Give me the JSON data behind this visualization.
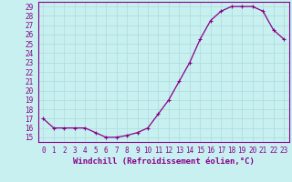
{
  "x": [
    0,
    1,
    2,
    3,
    4,
    5,
    6,
    7,
    8,
    9,
    10,
    11,
    12,
    13,
    14,
    15,
    16,
    17,
    18,
    19,
    20,
    21,
    22,
    23
  ],
  "y": [
    17,
    16,
    16,
    16,
    16,
    15.5,
    15,
    15,
    15.2,
    15.5,
    16,
    17.5,
    19,
    21,
    23,
    25.5,
    27.5,
    28.5,
    29,
    29,
    29,
    28.5,
    26.5,
    25.5
  ],
  "line_color": "#880088",
  "marker": "P",
  "marker_size": 2.5,
  "bg_color": "#c8f0f0",
  "xlabel": "Windchill (Refroidissement éolien,°C)",
  "ylim": [
    14.5,
    29.5
  ],
  "yticks": [
    15,
    16,
    17,
    18,
    19,
    20,
    21,
    22,
    23,
    24,
    25,
    26,
    27,
    28,
    29
  ],
  "xlim": [
    -0.5,
    23.5
  ],
  "xticks": [
    0,
    1,
    2,
    3,
    4,
    5,
    6,
    7,
    8,
    9,
    10,
    11,
    12,
    13,
    14,
    15,
    16,
    17,
    18,
    19,
    20,
    21,
    22,
    23
  ],
  "grid_color": "#b0dede",
  "tick_color": "#880088",
  "xlabel_fontsize": 6.5,
  "tick_fontsize": 5.5
}
